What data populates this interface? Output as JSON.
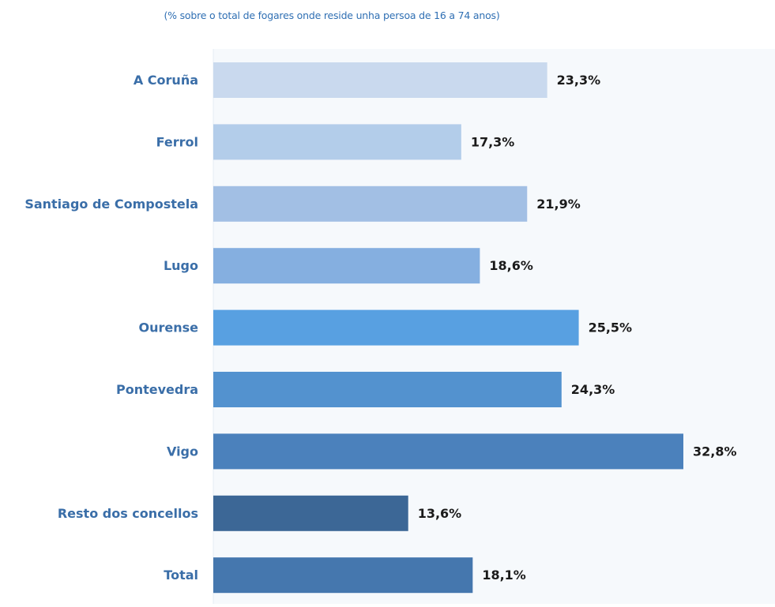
{
  "chart_data": {
    "type": "bar",
    "orientation": "horizontal",
    "subtitle": "(% sobre o total de fogares onde reside unha persoa de 16 a 74 anos)",
    "categories": [
      "A Coruña",
      "Ferrol",
      "Santiago de Compostela",
      "Lugo",
      "Ourense",
      "Pontevedra",
      "Vigo",
      "Resto dos concellos",
      "Total"
    ],
    "values": [
      23.3,
      17.3,
      21.9,
      18.6,
      25.5,
      24.3,
      32.8,
      13.6,
      18.1
    ],
    "value_labels": [
      "23,3%",
      "17,3%",
      "21,9%",
      "18,6%",
      "25,5%",
      "24,3%",
      "32,8%",
      "13,6%",
      "18,1%"
    ],
    "bar_colors": [
      "#c9d9ee",
      "#b3cdea",
      "#a2bfe4",
      "#85afe0",
      "#58a0e1",
      "#5392cf",
      "#4b81bc",
      "#3c6796",
      "#4577ae"
    ],
    "xlim": [
      0,
      40
    ],
    "grid": false,
    "legend": "none",
    "colors": {
      "category_text": "#3a6ea8",
      "value_text": "#1a1a1a",
      "subtitle_text": "#2f6fb3",
      "plot_background": "#f6f9fc",
      "axis_line": "#e6edf4"
    }
  }
}
